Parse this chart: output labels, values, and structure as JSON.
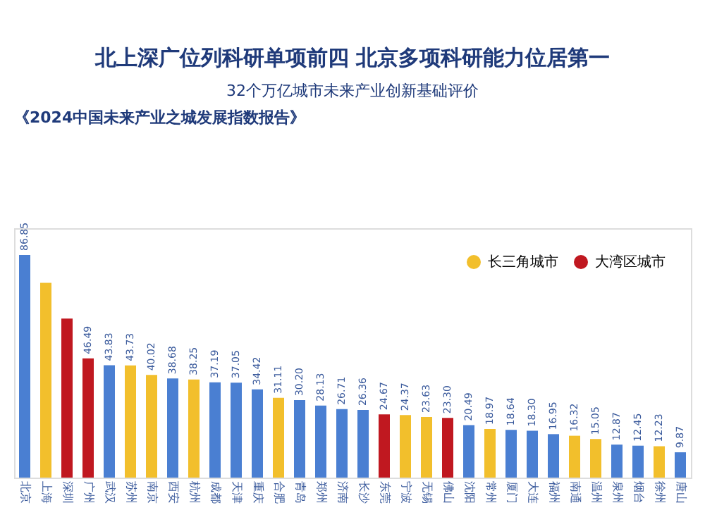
{
  "chart_data": {
    "type": "bar",
    "title": "北上深广位列科研单项前四 北京多项科研能力位居第一",
    "subtitle": "32个万亿城市未来产业创新基础评价",
    "annotations": [
      "《2024中国未来产业之城发展指数报告》"
    ],
    "categories": [
      "北京",
      "上海",
      "深圳",
      "广州",
      "武汉",
      "苏州",
      "南京",
      "西安",
      "杭州",
      "成都",
      "天津",
      "重庆",
      "合肥",
      "青岛",
      "郑州",
      "济南",
      "长沙",
      "东莞",
      "宁波",
      "无锡",
      "佛山",
      "沈阳",
      "常州",
      "厦门",
      "大连",
      "福州",
      "南通",
      "温州",
      "泉州",
      "烟台",
      "徐州",
      "唐山"
    ],
    "series": [
      {
        "color": "#4a7fd2",
        "values": [
          86.85,
          null,
          null,
          null,
          43.83,
          null,
          null,
          38.68,
          null,
          37.19,
          37.05,
          34.42,
          null,
          30.2,
          28.13,
          26.71,
          26.36,
          null,
          null,
          null,
          null,
          20.49,
          null,
          18.64,
          18.3,
          16.95,
          null,
          null,
          12.87,
          12.45,
          null,
          9.87
        ],
        "value_labels": [
          "86.85",
          null,
          null,
          null,
          "43.83",
          null,
          null,
          "38.68",
          null,
          "37.19",
          "37.05",
          "34.42",
          null,
          "30.20",
          "28.13",
          "26.71",
          "26.36",
          null,
          null,
          null,
          null,
          "20.49",
          null,
          "18.64",
          "18.30",
          "16.95",
          null,
          null,
          "12.87",
          "12.45",
          null,
          "9.87"
        ]
      },
      {
        "name": "长三角城市",
        "color": "#f2bf2c",
        "values": [
          null,
          76,
          null,
          null,
          null,
          43.73,
          40.02,
          null,
          38.25,
          null,
          null,
          null,
          31.11,
          null,
          null,
          null,
          null,
          null,
          24.37,
          23.63,
          null,
          null,
          18.97,
          null,
          null,
          null,
          16.32,
          15.05,
          null,
          null,
          12.23,
          null
        ],
        "value_labels": [
          null,
          null,
          null,
          null,
          null,
          "43.73",
          "40.02",
          null,
          "38.25",
          null,
          null,
          null,
          "31.11",
          null,
          null,
          null,
          null,
          null,
          "24.37",
          "23.63",
          null,
          null,
          "18.97",
          null,
          null,
          null,
          "16.32",
          "15.05",
          null,
          null,
          "12.23",
          null
        ]
      },
      {
        "name": "大湾区城市",
        "color": "#c01820",
        "values": [
          null,
          null,
          62,
          46.49,
          null,
          null,
          null,
          null,
          null,
          null,
          null,
          null,
          null,
          null,
          null,
          null,
          null,
          24.67,
          null,
          null,
          23.3,
          null,
          null,
          null,
          null,
          null,
          null,
          null,
          null,
          null,
          null,
          null
        ],
        "value_labels": [
          null,
          null,
          null,
          "46.49",
          null,
          null,
          null,
          null,
          null,
          null,
          null,
          null,
          null,
          null,
          null,
          null,
          null,
          "24.67",
          null,
          null,
          "23.30",
          null,
          null,
          null,
          null,
          null,
          null,
          null,
          null,
          null,
          null,
          null
        ]
      }
    ],
    "legend": "top right"
  }
}
